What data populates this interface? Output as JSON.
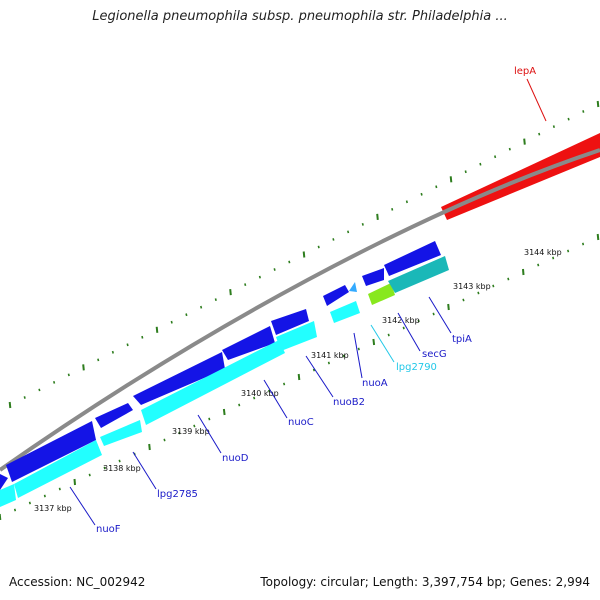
{
  "header": {
    "title": "Legionella pneumophila subsp. pneumophila str. Philadelphia ..."
  },
  "footer": {
    "accession": "Accession: NC_002942",
    "summary": "Topology: circular; Length: 3,397,754 bp; Genes: 2,994"
  },
  "colors": {
    "background": "#ffffff",
    "backbone": "#808080",
    "tick_major": "#2e7d1e",
    "tick_minor": "#2e7d1e",
    "gene_blue": "#1414e6",
    "gene_cyan": "#22ffff",
    "gene_teal": "#1ab8b8",
    "gene_lime": "#88e81e",
    "gene_red": "#ee1111",
    "gene_sky": "#33aaff",
    "label_blue": "#1a1ac8",
    "label_cyan": "#22c8e8",
    "label_red": "#dd1111"
  },
  "chart_data": {
    "type": "genome-map",
    "title": "Legionella pneumophila subsp. pneumophila str. Philadelphia ...",
    "kbp_ticks": [
      "3137 kbp",
      "3138 kbp",
      "3139 kbp",
      "3140 kbp",
      "3141 kbp",
      "3142 kbp",
      "3143 kbp",
      "3144 kbp"
    ],
    "gene_labels": [
      {
        "name": "lepA",
        "color": "red"
      },
      {
        "name": "tpiA",
        "color": "blue"
      },
      {
        "name": "secG",
        "color": "blue"
      },
      {
        "name": "lpg2790",
        "color": "cyan"
      },
      {
        "name": "nuoA",
        "color": "blue"
      },
      {
        "name": "nuoB2",
        "color": "blue"
      },
      {
        "name": "nuoC",
        "color": "blue"
      },
      {
        "name": "nuoD",
        "color": "blue"
      },
      {
        "name": "lpg2785",
        "color": "blue"
      },
      {
        "name": "nuoF",
        "color": "blue"
      }
    ]
  }
}
